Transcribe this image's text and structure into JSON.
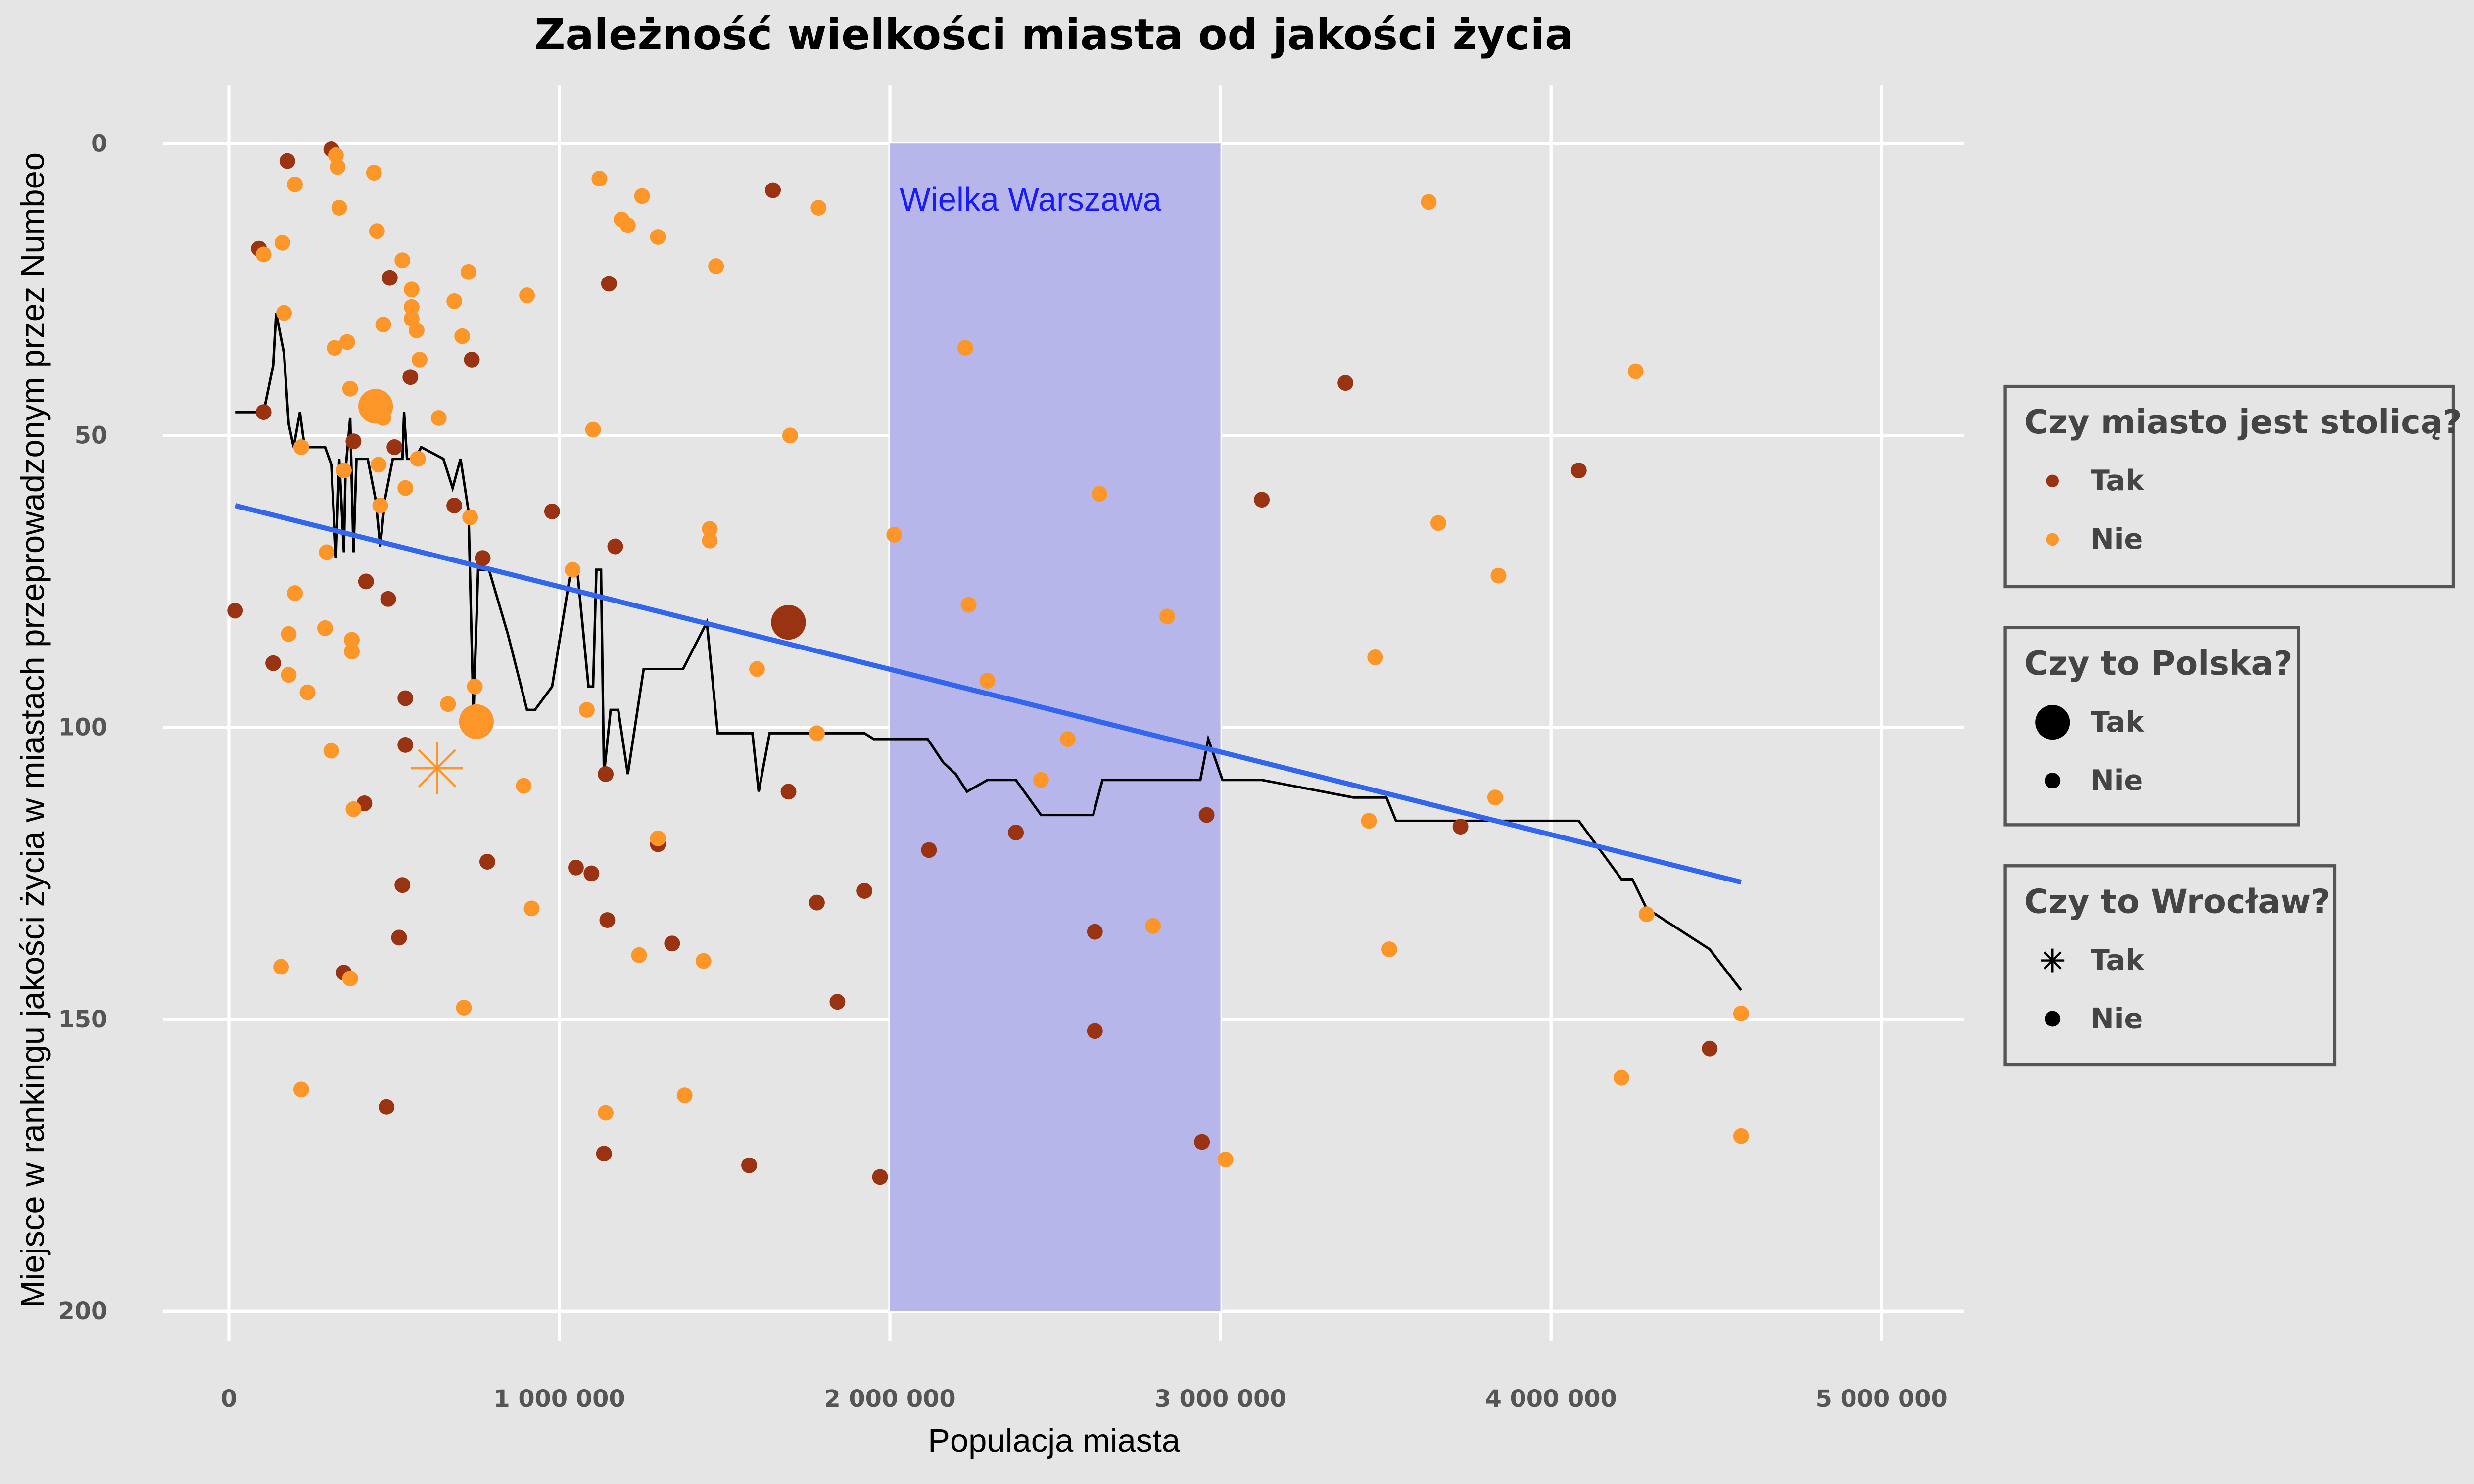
{
  "chart_data": {
    "type": "scatter",
    "title": "Zależność wielkości miasta od jakości życia",
    "xlabel": "Populacja miasta",
    "ylabel": "Miejsce w rankingu jakości życia w miastach przeprowadzonym przez Numbeo",
    "xlim": [
      -200000,
      5250000
    ],
    "ylim": [
      -10,
      205
    ],
    "y_reversed": true,
    "grid": true,
    "xticks": [
      0,
      {
        "value": 1000000,
        "label": "1 000 000"
      },
      {
        "value": 2000000,
        "label": "2 000 000"
      },
      {
        "value": 3000000,
        "label": "3 000 000"
      },
      {
        "value": 4000000,
        "label": "4 000 000"
      },
      {
        "value": 5000000,
        "label": "5 000 000"
      }
    ],
    "yticks": [
      0,
      50,
      100,
      150,
      200
    ],
    "band": {
      "label": "Wielka Warszawa",
      "x": [
        2000000,
        3000000
      ],
      "y": [
        0,
        200
      ],
      "color": "#b6b6ea",
      "label_color": "#1a1aff"
    },
    "series": [
      {
        "capital": "Tak",
        "poland": "Nie",
        "wroclaw": "Nie",
        "color": "#993311",
        "x": [
          19000,
          105000,
          91000,
          134000,
          177000,
          310000,
          377000,
          487000,
          549000,
          501000,
          482000,
          415000,
          534000,
          534000,
          410000,
          348000,
          477000,
          515000,
          525000,
          682000,
          735000,
          768000,
          782000,
          978000,
          1150000,
          1169000,
          1140000,
          1050000,
          1097000,
          1145000,
          1298000,
          1341000,
          1135000,
          1574000,
          1646000,
          1693000,
          1779000,
          1841000,
          1923000,
          1970000,
          2118000,
          2381000,
          2620000,
          2620000,
          2958000,
          2944000,
          3125000,
          3378000,
          3726000,
          4084000,
          4480000
        ],
        "values": [
          80,
          46,
          18,
          89,
          3,
          1,
          51,
          23,
          40,
          52,
          78,
          75,
          95,
          103,
          113,
          142,
          165,
          136,
          127,
          62,
          37,
          71,
          123,
          63,
          24,
          69,
          108,
          124,
          125,
          133,
          120,
          137,
          173,
          175,
          8,
          111,
          130,
          147,
          128,
          177,
          121,
          118,
          135,
          152,
          115,
          171,
          61,
          41,
          117,
          56,
          155
        ]
      },
      {
        "capital": "Nie",
        "poland": "Nie",
        "wroclaw": "Nie",
        "color": "#fd9628",
        "x": [
          105000,
          162000,
          200000,
          167000,
          158000,
          219000,
          200000,
          181000,
          181000,
          238000,
          219000,
          291000,
          296000,
          324000,
          329000,
          334000,
          310000,
          320000,
          358000,
          367000,
          348000,
          372000,
          372000,
          377000,
          367000,
          439000,
          448000,
          467000,
          453000,
          467000,
          458000,
          525000,
          553000,
          553000,
          553000,
          568000,
          577000,
          534000,
          572000,
          635000,
          682000,
          706000,
          725000,
          730000,
          744000,
          663000,
          711000,
          902000,
          892000,
          916000,
          1040000,
          1083000,
          1102000,
          1121000,
          1188000,
          1207000,
          1250000,
          1298000,
          1241000,
          1140000,
          1298000,
          1379000,
          1436000,
          1455000,
          1455000,
          1474000,
          1598000,
          1698000,
          1784000,
          1779000,
          2013000,
          2228000,
          2238000,
          2295000,
          2457000,
          2538000,
          2634000,
          2796000,
          2839000,
          3015000,
          3449000,
          3468000,
          3511000,
          3630000,
          3659000,
          3841000,
          3831000,
          4213000,
          4256000,
          4289000,
          4575000,
          4575000
        ],
        "values": [
          19,
          17,
          7,
          29,
          141,
          162,
          77,
          84,
          91,
          94,
          52,
          83,
          70,
          2,
          4,
          11,
          104,
          35,
          34,
          42,
          56,
          85,
          87,
          114,
          143,
          5,
          15,
          47,
          55,
          31,
          62,
          20,
          25,
          28,
          30,
          32,
          37,
          59,
          54,
          47,
          27,
          33,
          22,
          64,
          93,
          96,
          148,
          26,
          110,
          131,
          73,
          97,
          49,
          6,
          13,
          14,
          9,
          16,
          139,
          166,
          119,
          163,
          140,
          66,
          68,
          21,
          90,
          50,
          11,
          101,
          67,
          35,
          79,
          92,
          109,
          102,
          60,
          134,
          81,
          174,
          116,
          88,
          138,
          10,
          65,
          74,
          112,
          160,
          39,
          132,
          149,
          170
        ]
      },
      {
        "capital": "Tak",
        "poland": "Tak",
        "wroclaw": "Nie",
        "color": "#993311",
        "x": [
          1693000
        ],
        "values": [
          82
        ]
      },
      {
        "capital": "Nie",
        "poland": "Tak",
        "wroclaw": "Nie",
        "color": "#fd9628",
        "x": [
          444000,
          749000
        ],
        "values": [
          45,
          99
        ]
      },
      {
        "capital": "Nie",
        "poland": "Tak",
        "wroclaw": "Tak",
        "color": "#fd9628",
        "x": [
          630000
        ],
        "values": [
          107
        ]
      }
    ],
    "lines": [
      {
        "color": "#000000",
        "linewidth": 1.6,
        "x": [
          19000,
          105000,
          134000,
          143000,
          167000,
          181000,
          196000,
          215000,
          229000,
          291000,
          310000,
          324000,
          334000,
          348000,
          353000,
          367000,
          377000,
          386000,
          420000,
          444000,
          458000,
          472000,
          496000,
          525000,
          530000,
          539000,
          563000,
          582000,
          649000,
          677000,
          701000,
          725000,
          740000,
          754000,
          787000,
          844000,
          902000,
          926000,
          978000,
          1035000,
          1054000,
          1088000,
          1102000,
          1112000,
          1126000,
          1135000,
          1155000,
          1178000,
          1207000,
          1255000,
          1374000,
          1446000,
          1460000,
          1479000,
          1584000,
          1603000,
          1636000,
          1923000,
          1951000,
          2114000,
          2161000,
          2199000,
          2233000,
          2295000,
          2381000,
          2457000,
          2615000,
          2643000,
          2939000,
          2963000,
          3006000,
          3125000,
          3402000,
          3502000,
          3531000,
          3650000,
          4084000,
          4213000,
          4246000,
          4289000,
          4480000,
          4575000
        ],
        "values": [
          46,
          46,
          38,
          29,
          36,
          48,
          52,
          46,
          52,
          52,
          55,
          71,
          54,
          70,
          56,
          47,
          70,
          54,
          54,
          61,
          69,
          61,
          54,
          54,
          46,
          54,
          54,
          52,
          54,
          59,
          54,
          63,
          98,
          73,
          73,
          84,
          97,
          97,
          93,
          73,
          73,
          93,
          93,
          73,
          73,
          108,
          97,
          97,
          108,
          90,
          90,
          82,
          90,
          101,
          101,
          111,
          101,
          101,
          102,
          102,
          106,
          108,
          111,
          109,
          109,
          115,
          115,
          109,
          109,
          102,
          109,
          109,
          112,
          112,
          116,
          116,
          116,
          126,
          126,
          131,
          138,
          145
        ]
      },
      {
        "color": "#3366ee",
        "linewidth": 3.2,
        "x": [
          19000,
          4575000
        ],
        "values": [
          62,
          126.5
        ]
      }
    ],
    "legends": [
      {
        "title": "Czy miasto jest stolicą?",
        "key": "capital",
        "entries": [
          "Tak",
          "Nie"
        ]
      },
      {
        "title": "Czy to Polska?",
        "key": "poland",
        "entries": [
          "Tak",
          "Nie"
        ]
      },
      {
        "title": "Czy to Wrocław?",
        "key": "wroclaw",
        "entries": [
          "Tak",
          "Nie"
        ]
      }
    ]
  }
}
